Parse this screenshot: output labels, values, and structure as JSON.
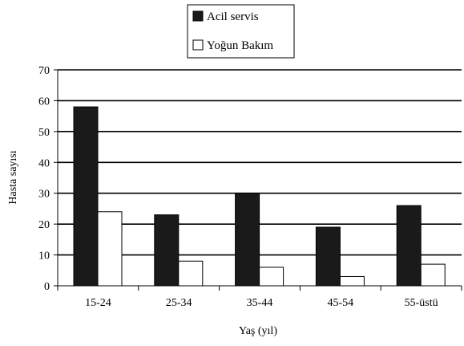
{
  "chart_data": {
    "type": "bar",
    "title": "",
    "xlabel": "Yaş (yıl)",
    "ylabel": "Hasta sayısı",
    "ylim": [
      0,
      70
    ],
    "yticks": [
      0,
      10,
      20,
      30,
      40,
      50,
      60,
      70
    ],
    "grid": true,
    "legend_position": "top-center",
    "categories": [
      "15-24",
      "25-34",
      "35-44",
      "45-54",
      "55-üstü"
    ],
    "series": [
      {
        "name": "Acil servis",
        "values": [
          58,
          23,
          30,
          19,
          26
        ],
        "color": "#1a1a1a"
      },
      {
        "name": "Yoğun Bakım",
        "values": [
          24,
          8,
          6,
          3,
          7
        ],
        "color": "#ffffff"
      }
    ]
  }
}
